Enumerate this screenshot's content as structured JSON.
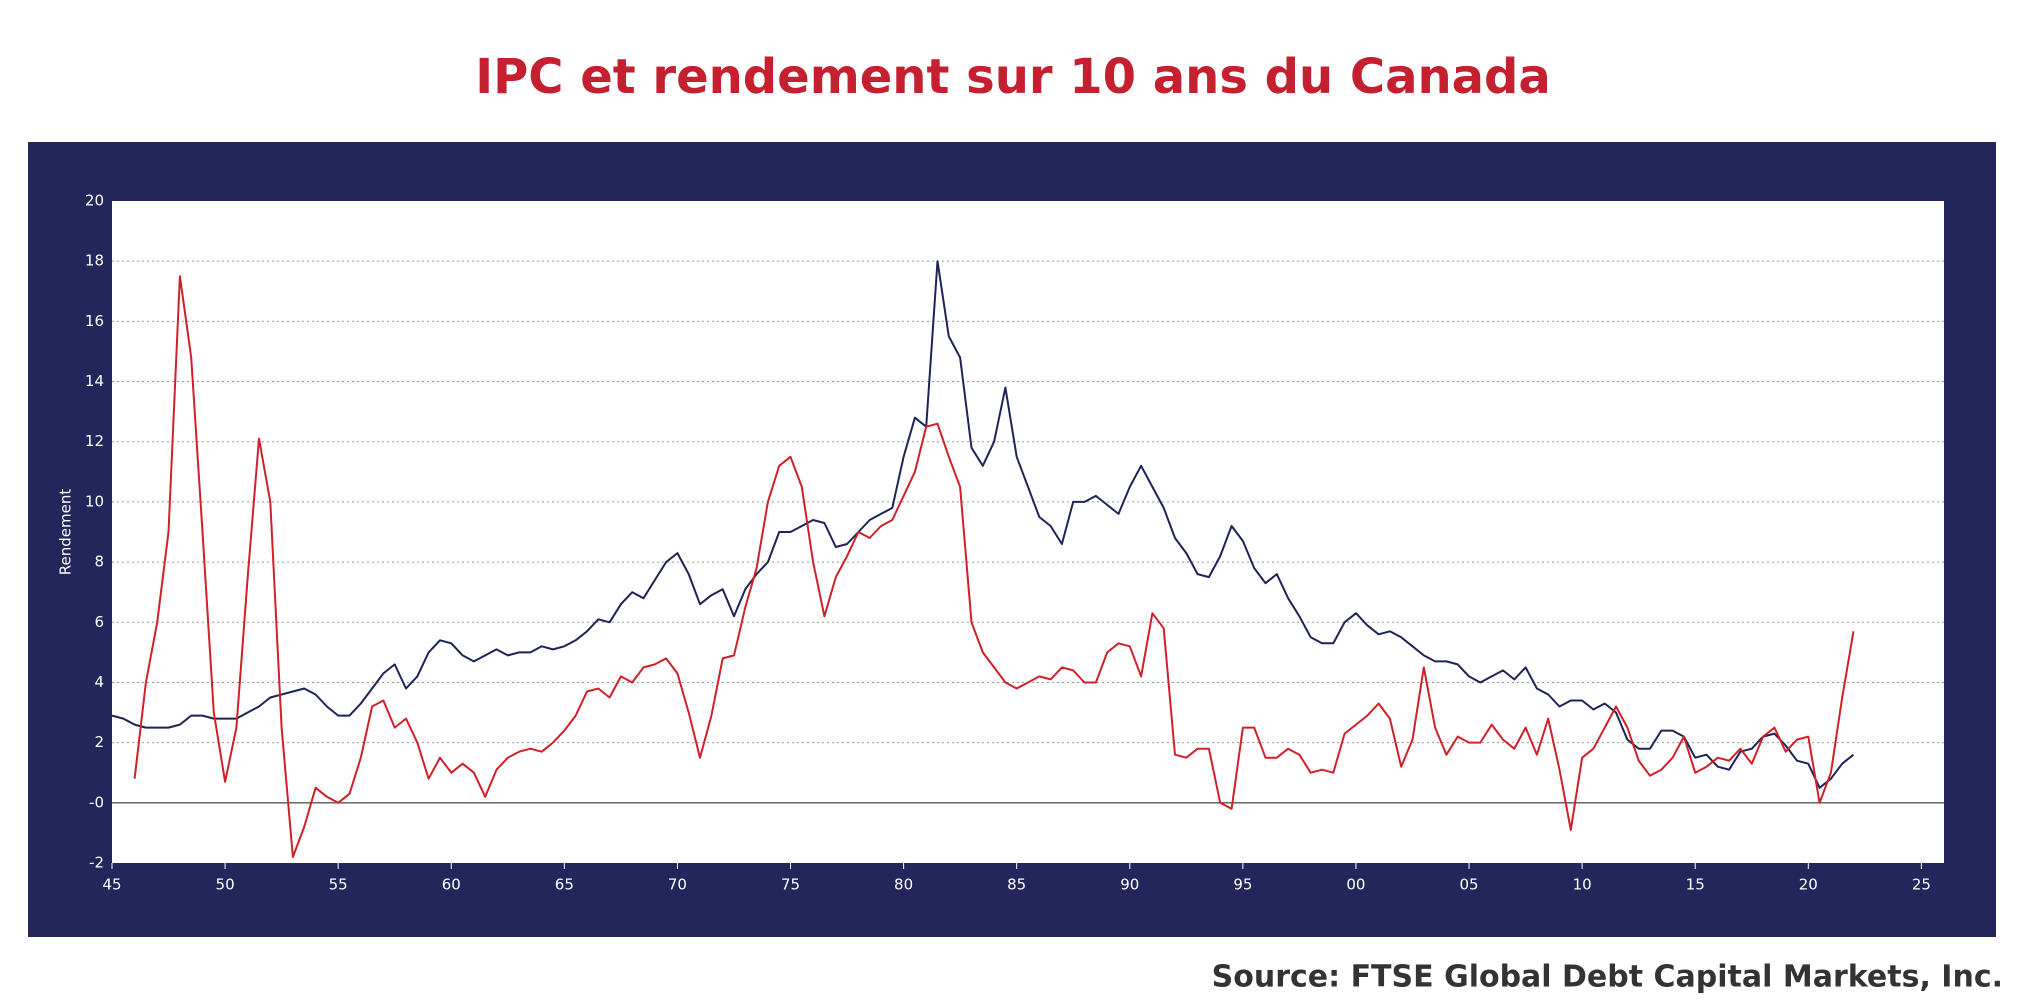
{
  "chart_data": {
    "type": "line",
    "title": "IPC et rendement sur 10 ans du Canada",
    "source": "Source: FTSE Global Debt Capital Markets, Inc.",
    "y_label": "Rendement",
    "xlim": [
      1945,
      2026
    ],
    "ylim": [
      -2,
      20
    ],
    "xticks": [
      {
        "value": 1945,
        "label": "45"
      },
      {
        "value": 1950,
        "label": "50"
      },
      {
        "value": 1955,
        "label": "55"
      },
      {
        "value": 1960,
        "label": "60"
      },
      {
        "value": 1965,
        "label": "65"
      },
      {
        "value": 1970,
        "label": "70"
      },
      {
        "value": 1975,
        "label": "75"
      },
      {
        "value": 1980,
        "label": "80"
      },
      {
        "value": 1985,
        "label": "85"
      },
      {
        "value": 1990,
        "label": "90"
      },
      {
        "value": 1995,
        "label": "95"
      },
      {
        "value": 2000,
        "label": "00"
      },
      {
        "value": 2005,
        "label": "05"
      },
      {
        "value": 2010,
        "label": "10"
      },
      {
        "value": 2015,
        "label": "15"
      },
      {
        "value": 2020,
        "label": "20"
      },
      {
        "value": 2025,
        "label": "25"
      }
    ],
    "yticks": [
      20,
      18,
      16,
      14,
      12,
      10,
      8,
      6,
      4,
      2,
      {
        "value": 0,
        "label": "-0"
      },
      -2
    ],
    "grid": true,
    "x": [
      1945,
      1945.5,
      1946,
      1946.5,
      1947,
      1947.5,
      1948,
      1948.5,
      1949,
      1949.5,
      1950,
      1950.5,
      1951,
      1951.5,
      1952,
      1952.5,
      1953,
      1953.5,
      1954,
      1954.5,
      1955,
      1955.5,
      1956,
      1956.5,
      1957,
      1957.5,
      1958,
      1958.5,
      1959,
      1959.5,
      1960,
      1960.5,
      1961,
      1961.5,
      1962,
      1962.5,
      1963,
      1963.5,
      1964,
      1964.5,
      1965,
      1965.5,
      1966,
      1966.5,
      1967,
      1967.5,
      1968,
      1968.5,
      1969,
      1969.5,
      1970,
      1970.5,
      1971,
      1971.5,
      1972,
      1972.5,
      1973,
      1973.5,
      1974,
      1974.5,
      1975,
      1975.5,
      1976,
      1976.5,
      1977,
      1977.5,
      1978,
      1978.5,
      1979,
      1979.5,
      1980,
      1980.5,
      1981,
      1981.5,
      1982,
      1982.5,
      1983,
      1983.5,
      1984,
      1984.5,
      1985,
      1985.5,
      1986,
      1986.5,
      1987,
      1987.5,
      1988,
      1988.5,
      1989,
      1989.5,
      1990,
      1990.5,
      1991,
      1991.5,
      1992,
      1992.5,
      1993,
      1993.5,
      1994,
      1994.5,
      1995,
      1995.5,
      1996,
      1996.5,
      1997,
      1997.5,
      1998,
      1998.5,
      1999,
      1999.5,
      2000,
      2000.5,
      2001,
      2001.5,
      2002,
      2002.5,
      2003,
      2003.5,
      2004,
      2004.5,
      2005,
      2005.5,
      2006,
      2006.5,
      2007,
      2007.5,
      2008,
      2008.5,
      2009,
      2009.5,
      2010,
      2010.5,
      2011,
      2011.5,
      2012,
      2012.5,
      2013,
      2013.5,
      2014,
      2014.5,
      2015,
      2015.5,
      2016,
      2016.5,
      2017,
      2017.5,
      2018,
      2018.5,
      2019,
      2019.5,
      2020,
      2020.5,
      2021,
      2021.5,
      2022
    ],
    "series": [
      {
        "color": "#1f2456",
        "values": [
          2.9,
          2.8,
          2.6,
          2.5,
          2.5,
          2.5,
          2.6,
          2.9,
          2.9,
          2.8,
          2.8,
          2.8,
          3.0,
          3.2,
          3.5,
          3.6,
          3.7,
          3.8,
          3.6,
          3.2,
          2.9,
          2.9,
          3.3,
          3.8,
          4.3,
          4.6,
          3.8,
          4.2,
          5.0,
          5.4,
          5.3,
          4.9,
          4.7,
          4.9,
          5.1,
          4.9,
          5.0,
          5.0,
          5.2,
          5.1,
          5.2,
          5.4,
          5.7,
          6.1,
          6.0,
          6.6,
          7.0,
          6.8,
          7.4,
          8.0,
          8.3,
          7.6,
          6.6,
          6.9,
          7.1,
          6.2,
          7.1,
          7.6,
          8.0,
          9.0,
          9.0,
          9.2,
          9.4,
          9.3,
          8.5,
          8.6,
          9.0,
          9.4,
          9.6,
          9.8,
          11.5,
          12.8,
          12.5,
          18.0,
          15.5,
          14.8,
          11.8,
          11.2,
          12.0,
          13.8,
          11.5,
          10.5,
          9.5,
          9.2,
          8.6,
          10.0,
          10.0,
          10.2,
          9.9,
          9.6,
          10.5,
          11.2,
          10.5,
          9.8,
          8.8,
          8.3,
          7.6,
          7.5,
          8.2,
          9.2,
          8.7,
          7.8,
          7.3,
          7.6,
          6.8,
          6.2,
          5.5,
          5.3,
          5.3,
          6.0,
          6.3,
          5.9,
          5.6,
          5.7,
          5.5,
          5.2,
          4.9,
          4.7,
          4.7,
          4.6,
          4.2,
          4.0,
          4.2,
          4.4,
          4.1,
          4.5,
          3.8,
          3.6,
          3.2,
          3.4,
          3.4,
          3.1,
          3.3,
          3.0,
          2.1,
          1.8,
          1.8,
          2.4,
          2.4,
          2.2,
          1.5,
          1.6,
          1.2,
          1.1,
          1.7,
          1.8,
          2.2,
          2.3,
          1.9,
          1.4,
          1.3,
          0.5,
          0.8,
          1.3,
          1.6
        ]
      },
      {
        "color": "#d0202a",
        "values": [
          null,
          null,
          0.8,
          4.0,
          6.0,
          9.0,
          17.5,
          14.8,
          9.0,
          3.0,
          0.7,
          2.5,
          7.5,
          12.1,
          10.0,
          2.5,
          -1.8,
          -0.8,
          0.5,
          0.2,
          0.0,
          0.3,
          1.5,
          3.2,
          3.4,
          2.5,
          2.8,
          2.0,
          0.8,
          1.5,
          1.0,
          1.3,
          1.0,
          0.2,
          1.1,
          1.5,
          1.7,
          1.8,
          1.7,
          2.0,
          2.4,
          2.9,
          3.7,
          3.8,
          3.5,
          4.2,
          4.0,
          4.5,
          4.6,
          4.8,
          4.3,
          3.0,
          1.5,
          2.9,
          4.8,
          4.9,
          6.5,
          7.8,
          10.0,
          11.2,
          11.5,
          10.5,
          8.0,
          6.2,
          7.5,
          8.2,
          9.0,
          8.8,
          9.2,
          9.4,
          10.2,
          11.0,
          12.5,
          12.6,
          11.5,
          10.5,
          6.0,
          5.0,
          4.5,
          4.0,
          3.8,
          4.0,
          4.2,
          4.1,
          4.5,
          4.4,
          4.0,
          4.0,
          5.0,
          5.3,
          5.2,
          4.2,
          6.3,
          5.8,
          1.6,
          1.5,
          1.8,
          1.8,
          0.0,
          -0.2,
          2.5,
          2.5,
          1.5,
          1.5,
          1.8,
          1.6,
          1.0,
          1.1,
          1.0,
          2.3,
          2.6,
          2.9,
          3.3,
          2.8,
          1.2,
          2.1,
          4.5,
          2.5,
          1.6,
          2.2,
          2.0,
          2.0,
          2.6,
          2.1,
          1.8,
          2.5,
          1.6,
          2.8,
          1.1,
          -0.9,
          1.5,
          1.8,
          2.5,
          3.2,
          2.5,
          1.4,
          0.9,
          1.1,
          1.5,
          2.2,
          1.0,
          1.2,
          1.5,
          1.4,
          1.8,
          1.3,
          2.2,
          2.5,
          1.7,
          2.1,
          2.2,
          0.0,
          1.0,
          3.5,
          5.7
        ]
      }
    ]
  }
}
